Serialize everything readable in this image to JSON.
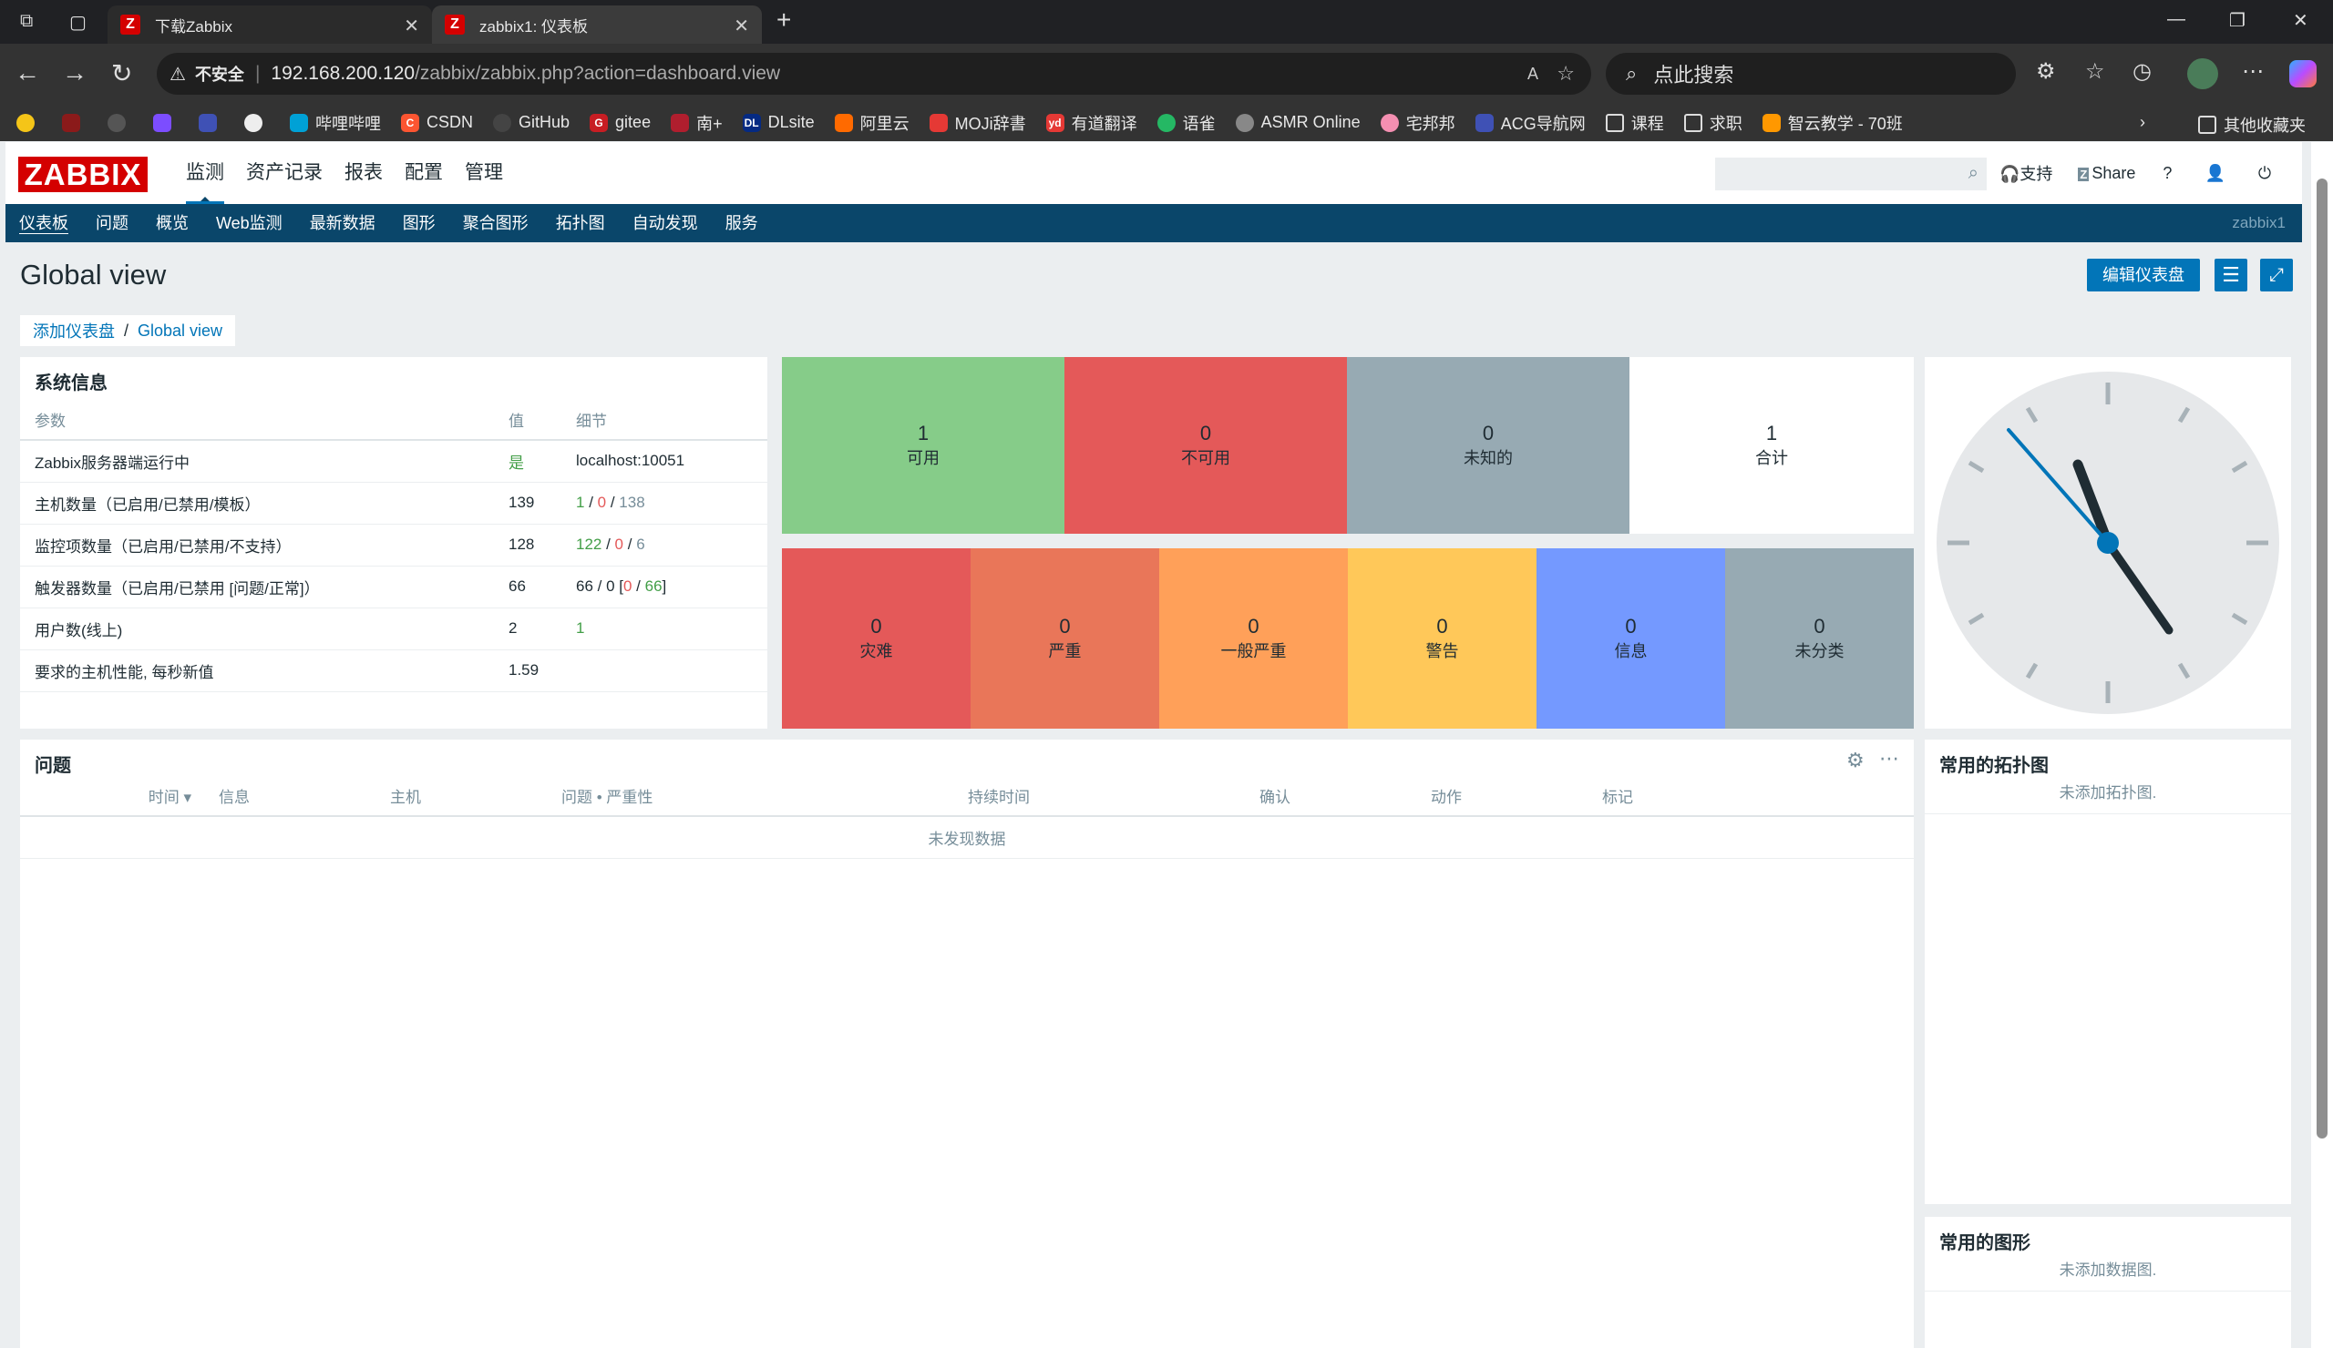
{
  "browser": {
    "tabs": [
      {
        "title": "下载Zabbix",
        "icon": "Z"
      },
      {
        "title": "zabbix1: 仪表板",
        "icon": "Z"
      }
    ],
    "security_label": "不安全",
    "url_host": "192.168.200.120",
    "url_path": "/zabbix/zabbix.php?action=dashboard.view",
    "search_placeholder": "点此搜索",
    "bookmarks": [
      {
        "label": "哔哩哔哩",
        "color": "#00a1d6"
      },
      {
        "label": "CSDN",
        "color": "#fc5531"
      },
      {
        "label": "GitHub",
        "color": "#444444"
      },
      {
        "label": "gitee",
        "color": "#c71d23"
      },
      {
        "label": "南+",
        "color": "#b01e2e"
      },
      {
        "label": "DLsite",
        "color": "#052a83"
      },
      {
        "label": "阿里云",
        "color": "#ff6a00"
      },
      {
        "label": "MOJi辞書",
        "color": "#e53935"
      },
      {
        "label": "有道翻译",
        "color": "#e53935"
      },
      {
        "label": "语雀",
        "color": "#25b864"
      },
      {
        "label": "ASMR Online",
        "color": "#888888"
      },
      {
        "label": "宅邦邦",
        "color": "#f48fb1"
      },
      {
        "label": "ACG导航网",
        "color": "#3f51b5"
      },
      {
        "label": "课程",
        "color": "#555555"
      },
      {
        "label": "求职",
        "color": "#555555"
      },
      {
        "label": "智云教学 - 70班",
        "color": "#ff9800"
      }
    ],
    "other_bookmarks": "其他收藏夹"
  },
  "zabbix": {
    "logo": "ZABBIX",
    "main_menu": [
      "监测",
      "资产记录",
      "报表",
      "配置",
      "管理"
    ],
    "top_links": {
      "support": "支持",
      "share": "Share",
      "help": "?"
    },
    "sub_menu": [
      "仪表板",
      "问题",
      "概览",
      "Web监测",
      "最新数据",
      "图形",
      "聚合图形",
      "拓扑图",
      "自动发现",
      "服务"
    ],
    "server_name": "zabbix1",
    "page_title": "Global view",
    "edit_button": "编辑仪表盘",
    "dash_tabs": {
      "add": "添加仪表盘",
      "sep": "/",
      "current": "Global view"
    }
  },
  "sysinfo": {
    "title": "系统信息",
    "headers": [
      "参数",
      "值",
      "细节"
    ],
    "rows": [
      {
        "param": "Zabbix服务器端运行中",
        "value": "是",
        "details": [
          "localhost:10051"
        ]
      },
      {
        "param": "主机数量（已启用/已禁用/模板）",
        "value": "139",
        "details": [
          "1",
          " / ",
          "0",
          " / ",
          "138"
        ]
      },
      {
        "param": "监控项数量（已启用/已禁用/不支持）",
        "value": "128",
        "details": [
          "122",
          " / ",
          "0",
          " / ",
          "6"
        ]
      },
      {
        "param": "触发器数量（已启用/已禁用 [问题/正常]）",
        "value": "66",
        "details": [
          "66 / 0 [",
          "0",
          " / ",
          "66",
          "]"
        ]
      },
      {
        "param": "用户数(线上)",
        "value": "2",
        "details": [
          "1"
        ]
      },
      {
        "param": "要求的主机性能, 每秒新值",
        "value": "1.59",
        "details": []
      }
    ]
  },
  "host_availability": [
    {
      "count": "1",
      "label": "可用",
      "color": "#86cc89"
    },
    {
      "count": "0",
      "label": "不可用",
      "color": "#e45959"
    },
    {
      "count": "0",
      "label": "未知的",
      "color": "#97aab3"
    },
    {
      "count": "1",
      "label": "合计",
      "color": "#ffffff"
    }
  ],
  "severity": [
    {
      "count": "0",
      "label": "灾难",
      "color": "#e45959"
    },
    {
      "count": "0",
      "label": "严重",
      "color": "#e97659"
    },
    {
      "count": "0",
      "label": "一般严重",
      "color": "#ffa059"
    },
    {
      "count": "0",
      "label": "警告",
      "color": "#ffc859"
    },
    {
      "count": "0",
      "label": "信息",
      "color": "#7499ff"
    },
    {
      "count": "0",
      "label": "未分类",
      "color": "#97aab3"
    }
  ],
  "problems": {
    "title": "问题",
    "headers": [
      "时间 ▾",
      "信息",
      "主机",
      "问题 • 严重性",
      "持续时间",
      "确认",
      "动作",
      "标记"
    ],
    "empty": "未发现数据"
  },
  "fav_maps": {
    "title": "常用的拓扑图",
    "empty": "未添加拓扑图."
  },
  "fav_graphs": {
    "title": "常用的图形",
    "empty": "未添加数据图."
  }
}
